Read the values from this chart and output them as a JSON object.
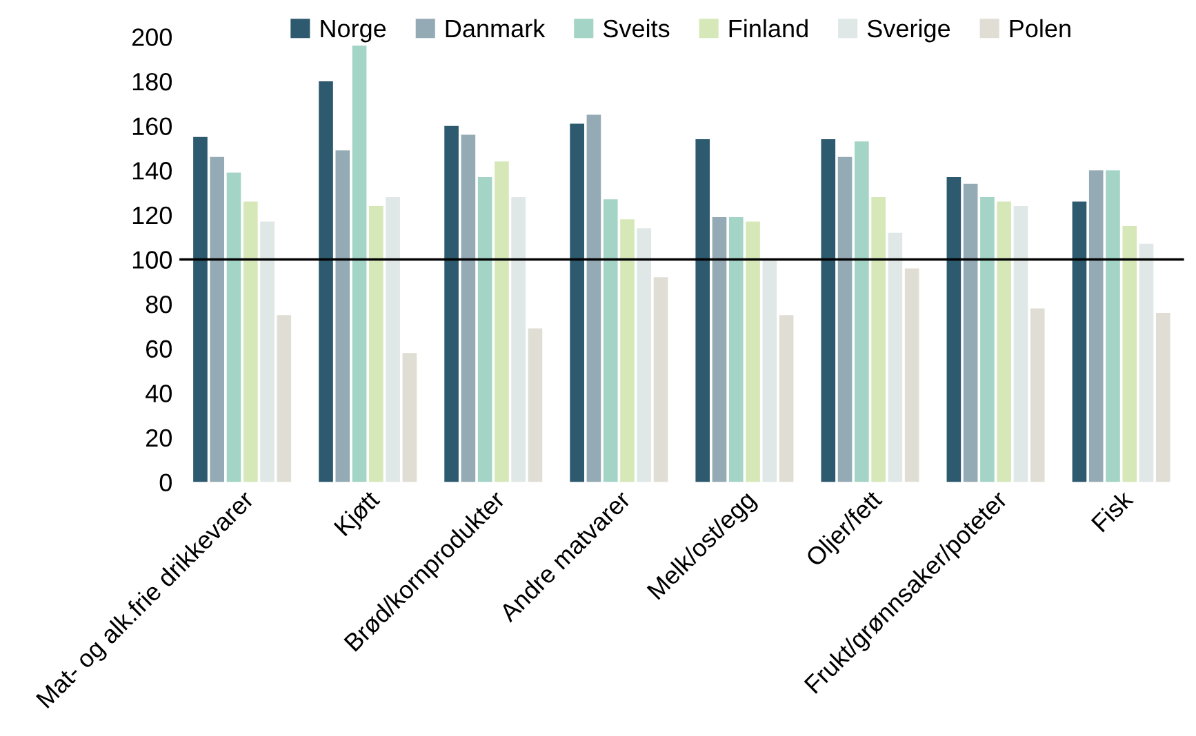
{
  "chart_data": {
    "type": "bar",
    "categories": [
      "Mat- og alk.frie drikkevarer",
      "Kjøtt",
      "Brød/kornprodukter",
      "Andre matvarer",
      "Melk/ost/egg",
      "Oljer/fett",
      "Frukt/grønnsaker/poteter",
      "Fisk"
    ],
    "series": [
      {
        "name": "Norge",
        "color": "#2d5a6e",
        "values": [
          155,
          180,
          160,
          161,
          154,
          154,
          137,
          126
        ]
      },
      {
        "name": "Danmark",
        "color": "#94aab5",
        "values": [
          146,
          149,
          156,
          165,
          119,
          146,
          134,
          140
        ]
      },
      {
        "name": "Sveits",
        "color": "#a3d4c6",
        "values": [
          139,
          196,
          137,
          127,
          119,
          153,
          128,
          140
        ]
      },
      {
        "name": "Finland",
        "color": "#d6e8b8",
        "values": [
          126,
          124,
          144,
          118,
          117,
          128,
          126,
          115
        ]
      },
      {
        "name": "Sverige",
        "color": "#dfe8e6",
        "values": [
          117,
          128,
          128,
          114,
          100,
          112,
          124,
          107
        ]
      },
      {
        "name": "Polen",
        "color": "#e0ded4",
        "values": [
          75,
          58,
          69,
          92,
          75,
          96,
          78,
          76
        ]
      }
    ],
    "ylim": [
      0,
      200
    ],
    "yticks": [
      0,
      20,
      40,
      60,
      80,
      100,
      120,
      140,
      160,
      180,
      200
    ],
    "ref_lines": [
      {
        "axis": "y",
        "value": 100,
        "color": "#000000"
      }
    ],
    "legend": "top",
    "grid": false
  }
}
